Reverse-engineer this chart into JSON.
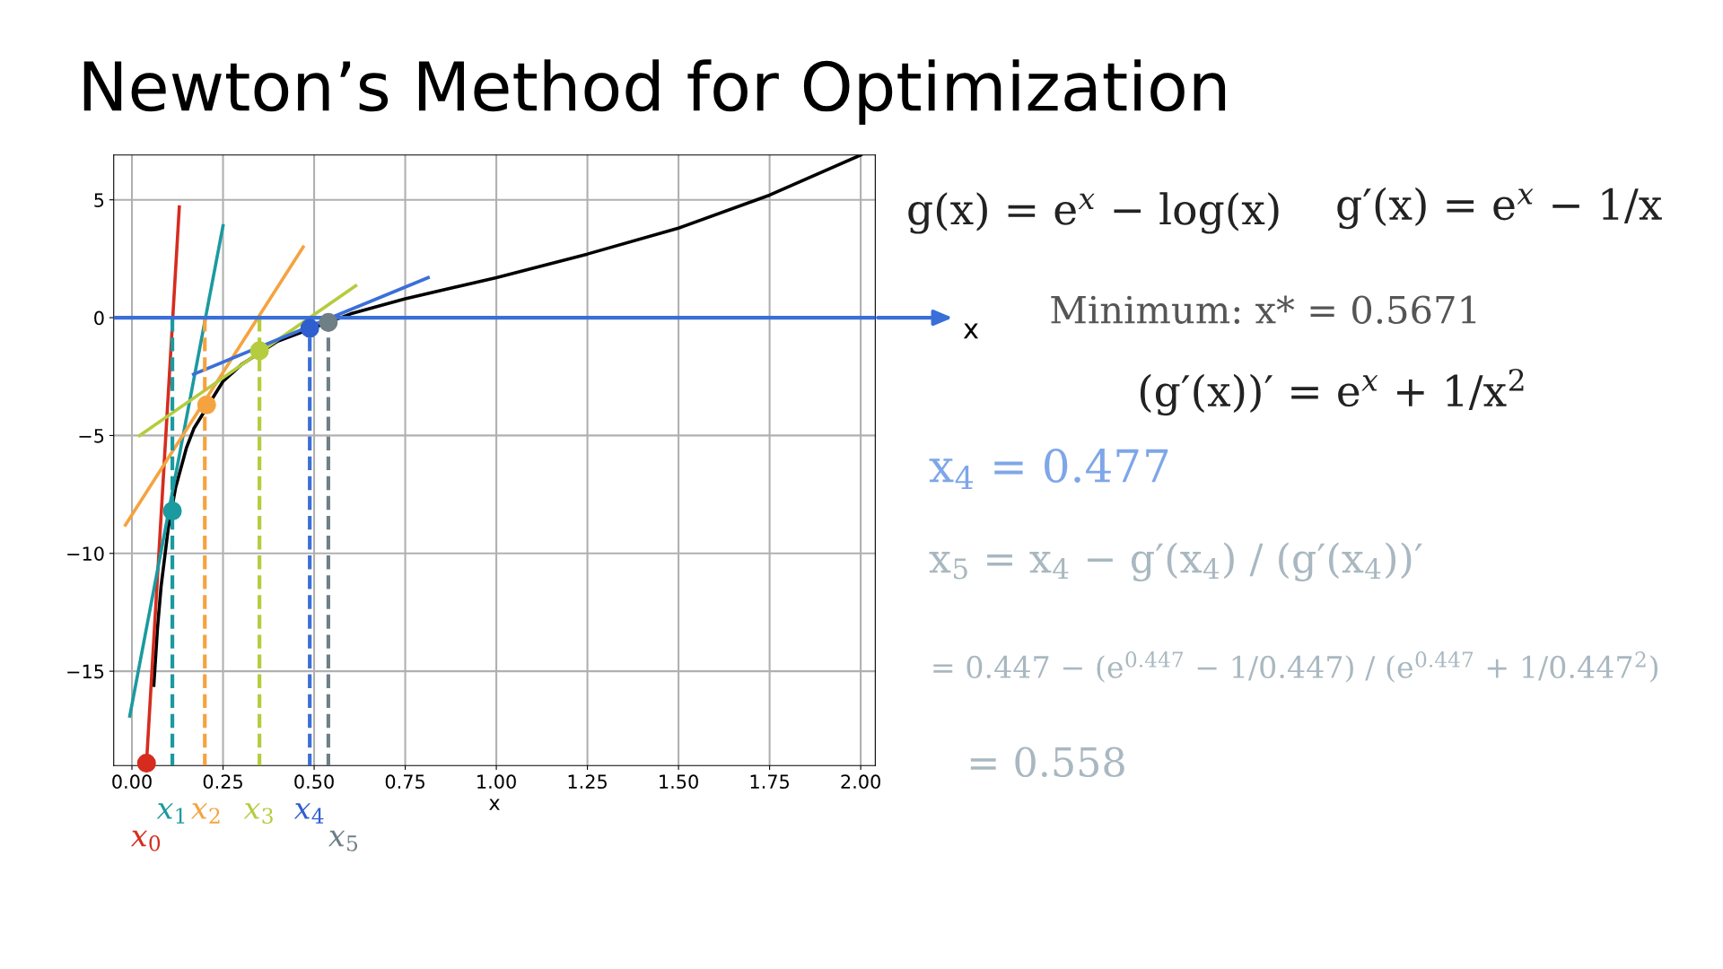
{
  "chart_data": {
    "type": "line",
    "title": "Newton’s Method for Optimization",
    "xlabel": "x",
    "xlim": [
      -0.05,
      2.04
    ],
    "ylim": [
      -19,
      6.9
    ],
    "xticks": [
      {
        "value": 0,
        "label": "0.00"
      },
      {
        "value": 0.25,
        "label": "0.25"
      },
      {
        "value": 0.5,
        "label": "0.50"
      },
      {
        "value": 0.75,
        "label": "0.75"
      },
      {
        "value": 1,
        "label": "1.00"
      },
      {
        "value": 1.25,
        "label": "1.25"
      },
      {
        "value": 1.5,
        "label": "1.50"
      },
      {
        "value": 1.75,
        "label": "1.75"
      },
      {
        "value": 2,
        "label": "2.00"
      }
    ],
    "yticks": [
      {
        "value": -15,
        "label": "−15"
      },
      {
        "value": -10,
        "label": "−10"
      },
      {
        "value": -5,
        "label": "−5"
      },
      0,
      5
    ],
    "grid": true,
    "ref_lines": [
      {
        "axis": "y",
        "value": 0,
        "label": "x",
        "color": "#3b6fd8"
      }
    ],
    "series": [
      {
        "color": "#000000",
        "x": [
          0.06,
          0.07,
          0.08,
          0.1,
          0.12,
          0.15,
          0.17,
          0.25,
          0.3,
          0.4,
          0.6,
          0.75,
          1.0,
          1.25,
          1.5,
          1.75,
          2.0
        ],
        "values": [
          -15.6,
          -13.2,
          -11.4,
          -8.9,
          -7.2,
          -5.5,
          -4.7,
          -2.7,
          -2.0,
          -1.0,
          0.16,
          0.8,
          1.7,
          2.7,
          3.8,
          5.2,
          6.9
        ]
      },
      {
        "color": "#d62c1f",
        "x": [
          0.04,
          0.13
        ],
        "values": [
          -18.9,
          4.7
        ]
      },
      {
        "color": "#1b9aa0",
        "x": [
          -0.006,
          0.25
        ],
        "values": [
          -16.9,
          3.9
        ]
      },
      {
        "color": "#f5a340",
        "x": [
          -0.018,
          0.47
        ],
        "values": [
          -8.8,
          3.0
        ]
      },
      {
        "color": "#b5cc3e",
        "x": [
          0.021,
          0.614
        ],
        "values": [
          -5.0,
          1.35
        ]
      },
      {
        "color": "#3b6fd8",
        "x": [
          0.169,
          0.813
        ],
        "values": [
          -2.4,
          1.7
        ]
      },
      {
        "line_style": "dashed",
        "color": "#1b9aa0",
        "x": [
          0.111,
          0.111
        ],
        "values": [
          0,
          -19
        ]
      },
      {
        "line_style": "dashed",
        "color": "#f5a340",
        "x": [
          0.2,
          0.2
        ],
        "values": [
          0,
          -19
        ]
      },
      {
        "line_style": "dashed",
        "color": "#b5cc3e",
        "x": [
          0.35,
          0.35
        ],
        "values": [
          0,
          -19
        ]
      },
      {
        "line_style": "dashed",
        "color": "#3b6fd8",
        "x": [
          0.488,
          0.488
        ],
        "values": [
          0,
          -19
        ]
      },
      {
        "line_style": "dashed",
        "color": "#6e7f86",
        "x": [
          0.539,
          0.539
        ],
        "values": [
          0,
          -19
        ]
      },
      {
        "type": "scatter",
        "name": "x$_{0}$",
        "color": "#d62c1f",
        "x": [
          0.04
        ],
        "values": [
          -18.9
        ]
      },
      {
        "type": "scatter",
        "name": "x$_{1}$",
        "color": "#1b9aa0",
        "x": [
          0.111
        ],
        "values": [
          -8.2
        ]
      },
      {
        "type": "scatter",
        "name": "x$_{2}$",
        "color": "#f5a340",
        "x": [
          0.205
        ],
        "values": [
          -3.7
        ]
      },
      {
        "type": "scatter",
        "name": "x$_{3}$",
        "color": "#b5cc3e",
        "x": [
          0.35
        ],
        "values": [
          -1.4
        ]
      },
      {
        "type": "scatter",
        "name": "x$_{4}$",
        "color": "#2f5fcf",
        "x": [
          0.488
        ],
        "values": [
          -0.45
        ]
      },
      {
        "type": "scatter",
        "name": "x$_{5}$",
        "color": "#6e7f86",
        "x": [
          0.539
        ],
        "values": [
          -0.2
        ]
      }
    ],
    "annotations": [
      "g(x) = e$^{x}$ − log(x)",
      "g′(x) = e$^{x}$ − 1/x",
      "Minimum: x* = 0.5671",
      "(g′(x))′ = e$^{x}$ + 1/x$^{2}$",
      "x$_{4}$ = 0.477",
      "x$_{5}$ = x$_{4}$ − g′(x$_{4}$) / (g′(x$_{4}$))′",
      "= 0.447 − (e$^{0.447}$ − 1/0.447) / (e$^{0.447}$ + 1/0.447$^{2}$)",
      "= 0.558"
    ]
  }
}
